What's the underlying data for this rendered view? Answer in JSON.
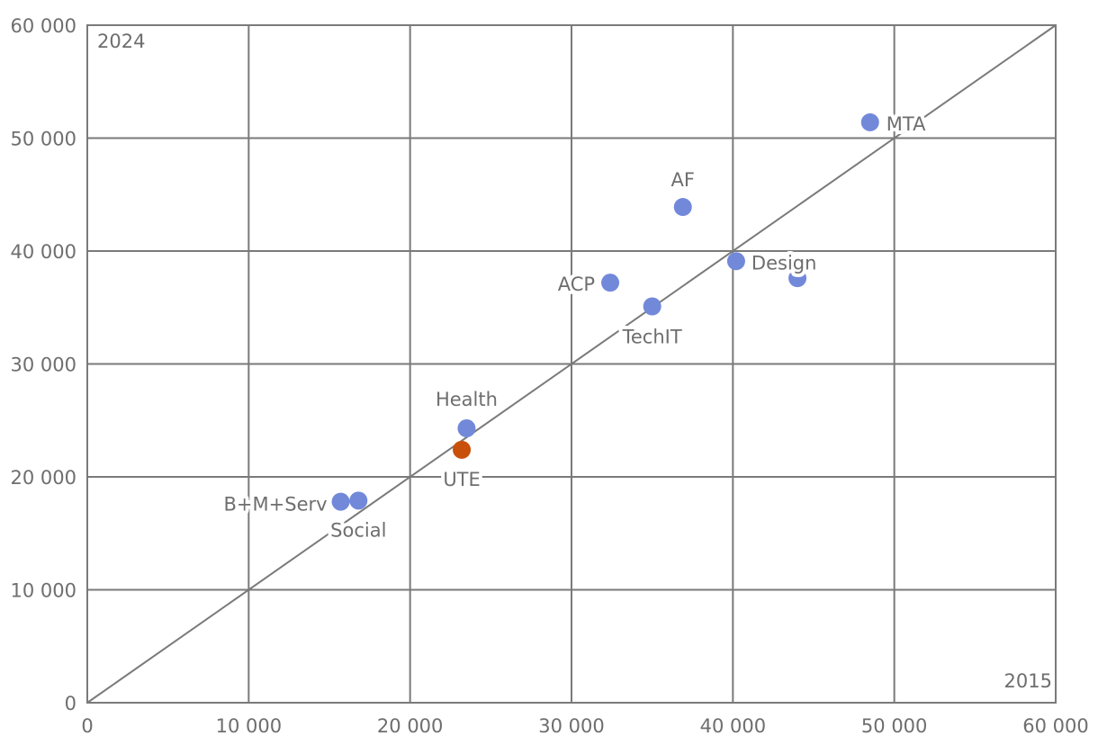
{
  "chart_data": {
    "type": "scatter",
    "title": "",
    "xlabel": "2015",
    "ylabel": "2024",
    "xlim": [
      0,
      60000
    ],
    "ylim": [
      0,
      60000
    ],
    "x_ticks": [
      0,
      10000,
      20000,
      30000,
      40000,
      50000,
      60000
    ],
    "y_ticks": [
      0,
      10000,
      20000,
      30000,
      40000,
      50000,
      60000
    ],
    "x_tick_labels": [
      "0",
      "10 000",
      "20 000",
      "30 000",
      "40 000",
      "50 000",
      "60 000"
    ],
    "y_tick_labels": [
      "0",
      "10 000",
      "20 000",
      "30 000",
      "40 000",
      "50 000",
      "60 000"
    ],
    "grid": true,
    "reference_line": "y = x",
    "colors": {
      "default_point": "#7289da",
      "highlight_point": "#c8500a",
      "grid": "#7a7a7a",
      "text": "#6e6e6e"
    },
    "points": [
      {
        "label": "MTA",
        "x": 48500,
        "y": 51400,
        "color": "#7289da"
      },
      {
        "label": "AF",
        "x": 36900,
        "y": 43900,
        "color": "#7289da"
      },
      {
        "label": "Design",
        "x": 40200,
        "y": 39100,
        "color": "#7289da"
      },
      {
        "label": "",
        "x": 44000,
        "y": 37600,
        "color": "#7289da"
      },
      {
        "label": "ACP",
        "x": 32400,
        "y": 37200,
        "color": "#7289da"
      },
      {
        "label": "TechIT",
        "x": 35000,
        "y": 35100,
        "color": "#7289da"
      },
      {
        "label": "Health",
        "x": 23500,
        "y": 24300,
        "color": "#7289da"
      },
      {
        "label": "UTE",
        "x": 23200,
        "y": 22400,
        "color": "#c8500a"
      },
      {
        "label": "B+M+Serv",
        "x": 15700,
        "y": 17800,
        "color": "#7289da"
      },
      {
        "label": "Social",
        "x": 16800,
        "y": 17900,
        "color": "#7289da"
      }
    ]
  }
}
